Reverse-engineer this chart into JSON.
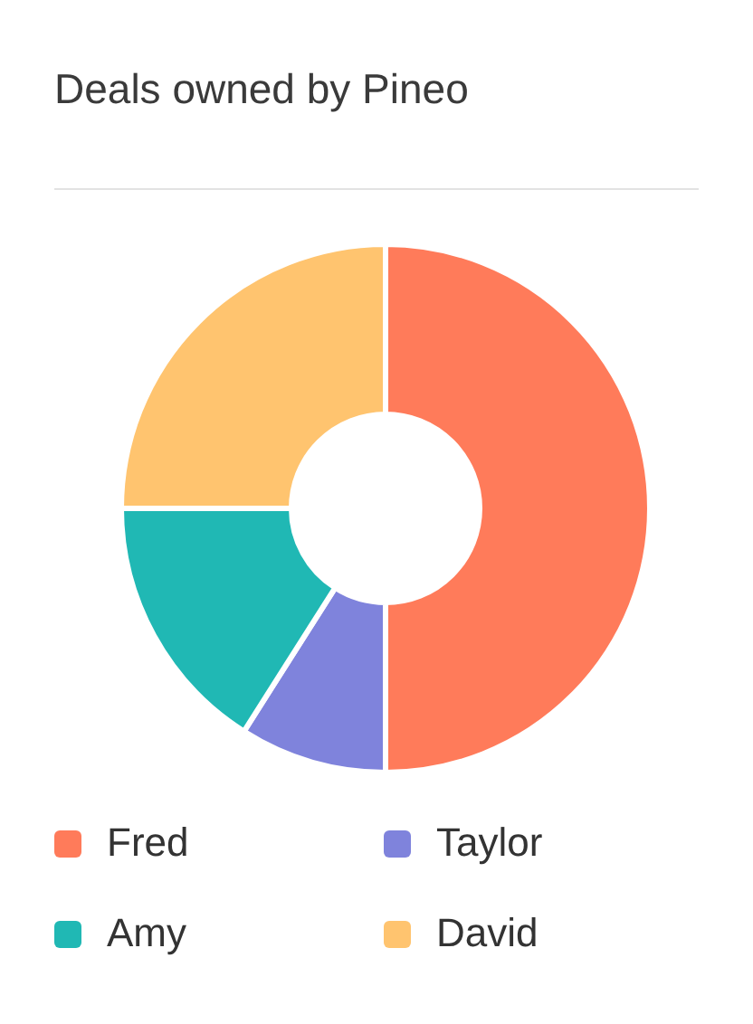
{
  "chart_data": {
    "type": "donut",
    "title": "Deals owned by Pineo",
    "categories": [
      "Fred",
      "Taylor",
      "Amy",
      "David"
    ],
    "values": [
      50,
      9,
      16,
      25
    ],
    "colors": [
      "#ff7b5a",
      "#7f83dc",
      "#20b8b4",
      "#ffc46f"
    ],
    "legend": "bottom"
  }
}
